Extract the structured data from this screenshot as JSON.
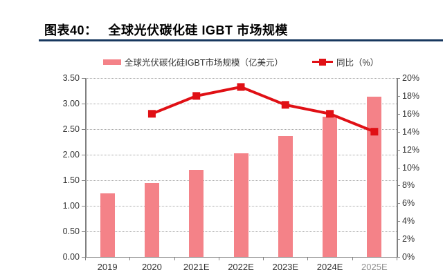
{
  "header": {
    "figure_label": "图表40：",
    "title": "全球光伏碳化硅 IGBT 市场规模"
  },
  "legend": [
    {
      "label": "全球光伏碳化硅IGBT市场规模（亿美元）",
      "marker": "bar-swatch"
    },
    {
      "label": "同比（%）",
      "marker": "line-square-swatch"
    }
  ],
  "colors": {
    "bar": "#F48288",
    "line": "#E01015",
    "title_rule": "#17375E",
    "grid": "#A6A6A6",
    "axis": "#808080",
    "text": "#333333"
  },
  "chart_data": {
    "type": "bar",
    "subtype": "combo-bar-line",
    "title": "全球光伏碳化硅 IGBT 市场规模",
    "categories": [
      "2019",
      "2020",
      "2021E",
      "2022E",
      "2023E",
      "2024E",
      "2025E"
    ],
    "series": [
      {
        "name": "全球光伏碳化硅IGBT市场规模（亿美元）",
        "type": "bar",
        "axis": "left",
        "values": [
          1.25,
          1.45,
          1.7,
          2.03,
          2.37,
          2.75,
          3.13
        ]
      },
      {
        "name": "同比（%）",
        "type": "line",
        "axis": "right",
        "values": [
          null,
          16,
          18,
          19,
          17,
          16,
          14
        ]
      }
    ],
    "left_axis": {
      "min": 0,
      "max": 3.5,
      "step": 0.5,
      "decimals": 2,
      "label": "亿美元"
    },
    "right_axis": {
      "min": 0,
      "max": 20,
      "step": 2,
      "suffix": "%"
    },
    "grid": "horizontal-dotted",
    "legend_position": "top-center"
  }
}
